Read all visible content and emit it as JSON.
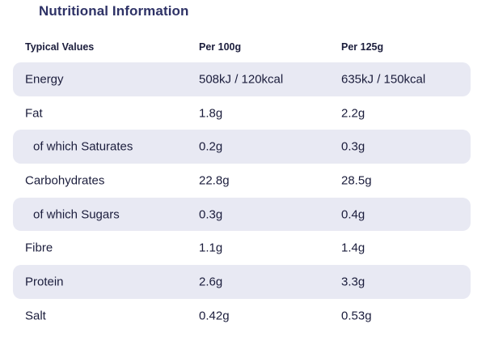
{
  "title": "Nutritional Information",
  "columns": [
    "Typical Values",
    "Per 100g",
    "Per 125g"
  ],
  "rows": [
    {
      "label": "Energy",
      "per100": "508kJ / 120kcal",
      "per125": "635kJ / 150kcal"
    },
    {
      "label": "Fat",
      "per100": "1.8g",
      "per125": "2.2g"
    },
    {
      "label": "of which Saturates",
      "per100": "0.2g",
      "per125": "0.3g"
    },
    {
      "label": "Carbohydrates",
      "per100": "22.8g",
      "per125": "28.5g"
    },
    {
      "label": "of which Sugars",
      "per100": "0.3g",
      "per125": "0.4g"
    },
    {
      "label": "Fibre",
      "per100": "1.1g",
      "per125": "1.4g"
    },
    {
      "label": "Protein",
      "per100": "2.6g",
      "per125": "3.3g"
    },
    {
      "label": "Salt",
      "per100": "0.42g",
      "per125": "0.53g"
    }
  ],
  "colors": {
    "shaded_row": "#e8e9f3",
    "title": "#2e3266",
    "text": "#1b1d3c"
  }
}
